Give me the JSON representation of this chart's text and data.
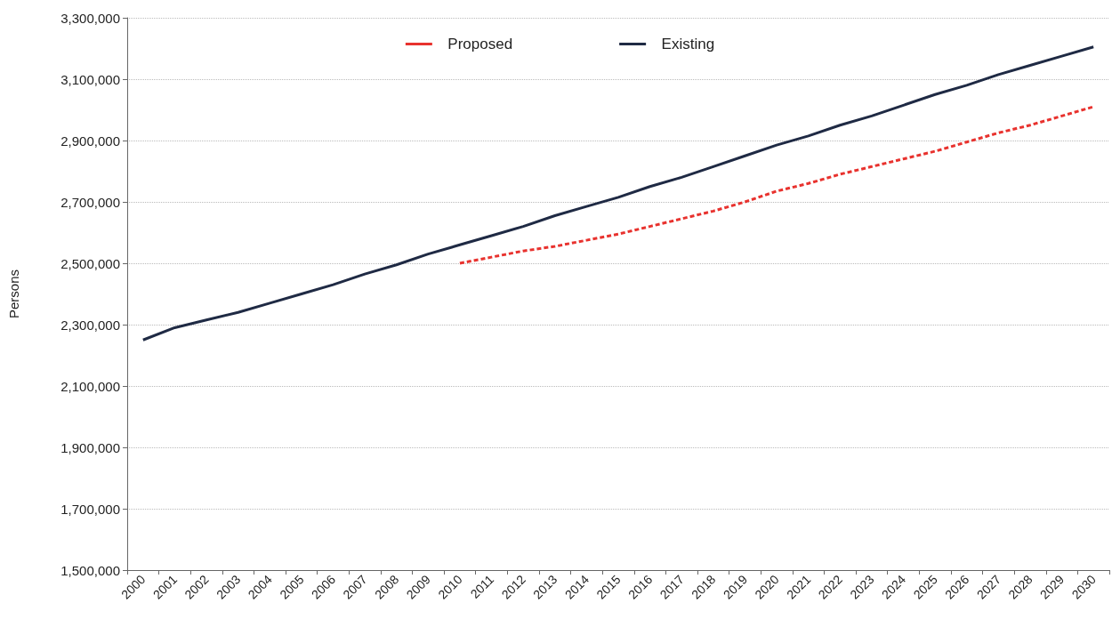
{
  "chart_data": {
    "type": "line",
    "ylabel": "Persons",
    "categories": [
      "2000",
      "2001",
      "2002",
      "2003",
      "2004",
      "2005",
      "2006",
      "2007",
      "2008",
      "2009",
      "2010",
      "2011",
      "2012",
      "2013",
      "2014",
      "2015",
      "2016",
      "2017",
      "2018",
      "2019",
      "2020",
      "2021",
      "2022",
      "2023",
      "2024",
      "2025",
      "2026",
      "2027",
      "2028",
      "2029",
      "2030"
    ],
    "series": [
      {
        "name": "Proposed",
        "color": "#e8322e",
        "line_style": "dashed",
        "values": [
          null,
          null,
          null,
          null,
          null,
          null,
          null,
          null,
          null,
          null,
          2500000,
          2520000,
          2540000,
          2555000,
          2575000,
          2595000,
          2620000,
          2645000,
          2670000,
          2700000,
          2735000,
          2760000,
          2790000,
          2815000,
          2840000,
          2865000,
          2895000,
          2925000,
          2950000,
          2980000,
          3010000
        ]
      },
      {
        "name": "Existing",
        "color": "#1f2a44",
        "line_style": "solid",
        "values": [
          2250000,
          2290000,
          2315000,
          2340000,
          2370000,
          2400000,
          2430000,
          2465000,
          2495000,
          2530000,
          2560000,
          2590000,
          2620000,
          2655000,
          2685000,
          2715000,
          2750000,
          2780000,
          2815000,
          2850000,
          2885000,
          2915000,
          2950000,
          2980000,
          3015000,
          3050000,
          3080000,
          3115000,
          3145000,
          3175000,
          3205000
        ]
      }
    ],
    "ylim": [
      1500000,
      3300000
    ],
    "yticks": [
      {
        "value": 1500000,
        "label": "1,500,000"
      },
      {
        "value": 1700000,
        "label": "1,700,000"
      },
      {
        "value": 1900000,
        "label": "1,900,000"
      },
      {
        "value": 2100000,
        "label": "2,100,000"
      },
      {
        "value": 2300000,
        "label": "2,300,000"
      },
      {
        "value": 2500000,
        "label": "2,500,000"
      },
      {
        "value": 2700000,
        "label": "2,700,000"
      },
      {
        "value": 2900000,
        "label": "2,900,000"
      },
      {
        "value": 3100000,
        "label": "3,100,000"
      },
      {
        "value": 3300000,
        "label": "3,300,000"
      }
    ],
    "grid": "y",
    "legend": "top",
    "marker": "none"
  }
}
